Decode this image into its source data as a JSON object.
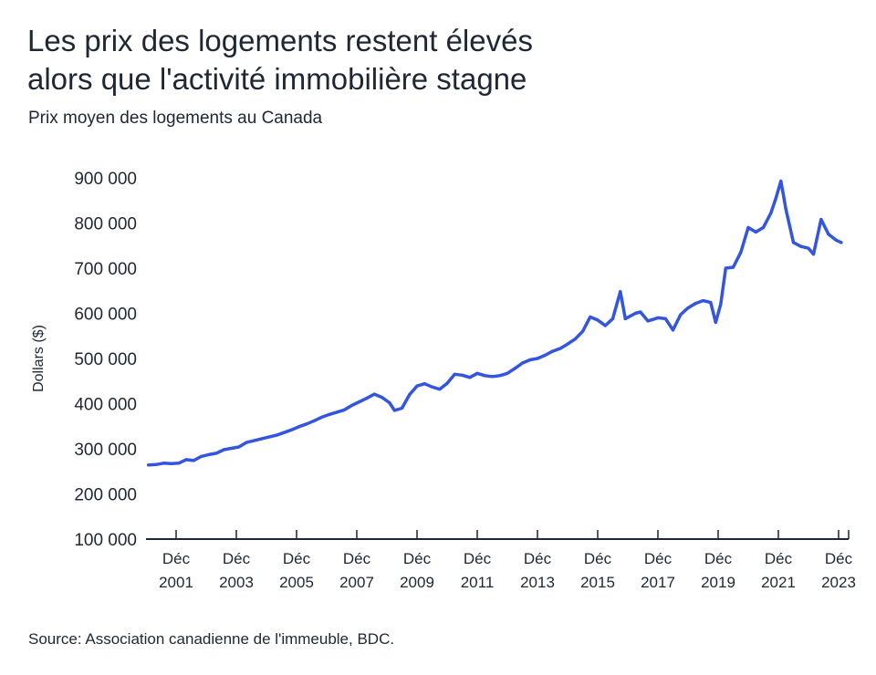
{
  "title_lines": [
    "Les prix des logements restent élevés",
    "alors que l'activité immobilière stagne"
  ],
  "subtitle": "Prix moyen des logements au Canada",
  "source": "Source: Association canadienne de l'immeuble, BDC.",
  "colors": {
    "line": "#3355e0",
    "text": "#1f2733",
    "axis": "#1f2733"
  },
  "chart_data": {
    "type": "line",
    "title": "Les prix des logements restent élevés alors que l'activité immobilière stagne",
    "subtitle": "Prix moyen des logements au Canada",
    "ylabel": "Dollars ($)",
    "xlabel": "",
    "ylim": [
      100000,
      900000
    ],
    "xlim": [
      "2000-12",
      "2024-04"
    ],
    "grid": false,
    "yticks": [
      {
        "value": 100000,
        "label": "100 000"
      },
      {
        "value": 200000,
        "label": "200 000"
      },
      {
        "value": 300000,
        "label": "300 000"
      },
      {
        "value": 400000,
        "label": "400 000"
      },
      {
        "value": 500000,
        "label": "500 000"
      },
      {
        "value": 600000,
        "label": "600 000"
      },
      {
        "value": 700000,
        "label": "700 000"
      },
      {
        "value": 800000,
        "label": "800 000"
      },
      {
        "value": 900000,
        "label": "900 000"
      }
    ],
    "xticks": [
      {
        "date": "2001-12",
        "line1": "Déc",
        "line2": "2001"
      },
      {
        "date": "2003-12",
        "line1": "Déc",
        "line2": "2003"
      },
      {
        "date": "2005-12",
        "line1": "Déc",
        "line2": "2005"
      },
      {
        "date": "2007-12",
        "line1": "Déc",
        "line2": "2007"
      },
      {
        "date": "2009-12",
        "line1": "Déc",
        "line2": "2009"
      },
      {
        "date": "2011-12",
        "line1": "Déc",
        "line2": "2011"
      },
      {
        "date": "2013-12",
        "line1": "Déc",
        "line2": "2013"
      },
      {
        "date": "2015-12",
        "line1": "Déc",
        "line2": "2015"
      },
      {
        "date": "2017-12",
        "line1": "Déc",
        "line2": "2017"
      },
      {
        "date": "2019-12",
        "line1": "Déc",
        "line2": "2019"
      },
      {
        "date": "2021-12",
        "line1": "Déc",
        "line2": "2021"
      },
      {
        "date": "2023-12",
        "line1": "Déc",
        "line2": "2023"
      }
    ],
    "series": [
      {
        "values": [
          {
            "x": "2001-01",
            "y": 264000
          },
          {
            "x": "2001-04",
            "y": 265000
          },
          {
            "x": "2001-07",
            "y": 268000
          },
          {
            "x": "2001-10",
            "y": 267000
          },
          {
            "x": "2002-01",
            "y": 268000
          },
          {
            "x": "2002-04",
            "y": 276000
          },
          {
            "x": "2002-07",
            "y": 274000
          },
          {
            "x": "2002-10",
            "y": 283000
          },
          {
            "x": "2003-01",
            "y": 287000
          },
          {
            "x": "2003-04",
            "y": 290000
          },
          {
            "x": "2003-07",
            "y": 298000
          },
          {
            "x": "2003-10",
            "y": 301000
          },
          {
            "x": "2004-01",
            "y": 304000
          },
          {
            "x": "2004-04",
            "y": 314000
          },
          {
            "x": "2004-07",
            "y": 318000
          },
          {
            "x": "2004-10",
            "y": 322000
          },
          {
            "x": "2005-01",
            "y": 326000
          },
          {
            "x": "2005-04",
            "y": 330000
          },
          {
            "x": "2005-07",
            "y": 336000
          },
          {
            "x": "2005-10",
            "y": 342000
          },
          {
            "x": "2006-01",
            "y": 349000
          },
          {
            "x": "2006-04",
            "y": 355000
          },
          {
            "x": "2006-07",
            "y": 362000
          },
          {
            "x": "2006-10",
            "y": 370000
          },
          {
            "x": "2007-01",
            "y": 376000
          },
          {
            "x": "2007-04",
            "y": 381000
          },
          {
            "x": "2007-07",
            "y": 386000
          },
          {
            "x": "2007-10",
            "y": 396000
          },
          {
            "x": "2008-01",
            "y": 404000
          },
          {
            "x": "2008-04",
            "y": 412000
          },
          {
            "x": "2008-07",
            "y": 421000
          },
          {
            "x": "2008-10",
            "y": 414000
          },
          {
            "x": "2009-01",
            "y": 402000
          },
          {
            "x": "2009-03",
            "y": 385000
          },
          {
            "x": "2009-06",
            "y": 390000
          },
          {
            "x": "2009-09",
            "y": 420000
          },
          {
            "x": "2009-12",
            "y": 439000
          },
          {
            "x": "2010-03",
            "y": 444000
          },
          {
            "x": "2010-06",
            "y": 437000
          },
          {
            "x": "2010-09",
            "y": 432000
          },
          {
            "x": "2010-12",
            "y": 445000
          },
          {
            "x": "2011-03",
            "y": 465000
          },
          {
            "x": "2011-06",
            "y": 463000
          },
          {
            "x": "2011-09",
            "y": 458000
          },
          {
            "x": "2011-12",
            "y": 467000
          },
          {
            "x": "2012-03",
            "y": 462000
          },
          {
            "x": "2012-06",
            "y": 460000
          },
          {
            "x": "2012-09",
            "y": 462000
          },
          {
            "x": "2012-12",
            "y": 467000
          },
          {
            "x": "2013-03",
            "y": 478000
          },
          {
            "x": "2013-06",
            "y": 490000
          },
          {
            "x": "2013-09",
            "y": 497000
          },
          {
            "x": "2013-12",
            "y": 500000
          },
          {
            "x": "2014-03",
            "y": 507000
          },
          {
            "x": "2014-06",
            "y": 516000
          },
          {
            "x": "2014-09",
            "y": 522000
          },
          {
            "x": "2014-12",
            "y": 532000
          },
          {
            "x": "2015-03",
            "y": 543000
          },
          {
            "x": "2015-06",
            "y": 560000
          },
          {
            "x": "2015-09",
            "y": 592000
          },
          {
            "x": "2015-12",
            "y": 585000
          },
          {
            "x": "2016-03",
            "y": 573000
          },
          {
            "x": "2016-06",
            "y": 588000
          },
          {
            "x": "2016-09",
            "y": 648000
          },
          {
            "x": "2016-11",
            "y": 588000
          },
          {
            "x": "2017-03",
            "y": 600000
          },
          {
            "x": "2017-05",
            "y": 603000
          },
          {
            "x": "2017-08",
            "y": 583000
          },
          {
            "x": "2017-12",
            "y": 590000
          },
          {
            "x": "2018-03",
            "y": 588000
          },
          {
            "x": "2018-06",
            "y": 563000
          },
          {
            "x": "2018-09",
            "y": 597000
          },
          {
            "x": "2018-12",
            "y": 612000
          },
          {
            "x": "2019-03",
            "y": 622000
          },
          {
            "x": "2019-06",
            "y": 628000
          },
          {
            "x": "2019-09",
            "y": 624000
          },
          {
            "x": "2019-11",
            "y": 580000
          },
          {
            "x": "2020-01",
            "y": 620000
          },
          {
            "x": "2020-03",
            "y": 700000
          },
          {
            "x": "2020-06",
            "y": 702000
          },
          {
            "x": "2020-09",
            "y": 735000
          },
          {
            "x": "2020-12",
            "y": 790000
          },
          {
            "x": "2021-03",
            "y": 780000
          },
          {
            "x": "2021-06",
            "y": 790000
          },
          {
            "x": "2021-09",
            "y": 822000
          },
          {
            "x": "2021-11",
            "y": 855000
          },
          {
            "x": "2022-01",
            "y": 893000
          },
          {
            "x": "2022-03",
            "y": 830000
          },
          {
            "x": "2022-06",
            "y": 757000
          },
          {
            "x": "2022-09",
            "y": 748000
          },
          {
            "x": "2022-12",
            "y": 744000
          },
          {
            "x": "2023-02",
            "y": 731000
          },
          {
            "x": "2023-05",
            "y": 808000
          },
          {
            "x": "2023-08",
            "y": 775000
          },
          {
            "x": "2023-11",
            "y": 762000
          },
          {
            "x": "2024-01",
            "y": 757000
          }
        ]
      }
    ]
  }
}
